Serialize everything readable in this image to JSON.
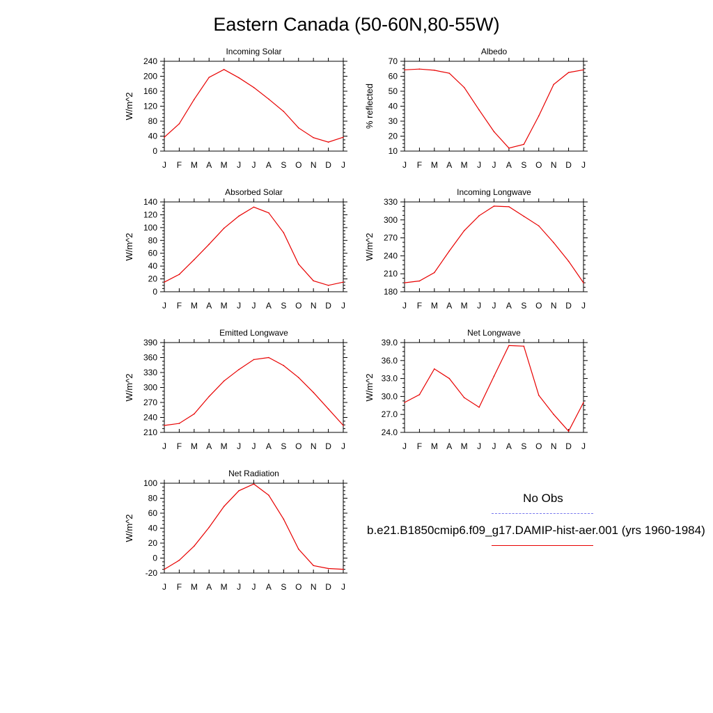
{
  "title": "Eastern Canada (50-60N,80-55W)",
  "legend": {
    "obs_label": "No Obs",
    "obs_color": "#7777ee",
    "model_label": "b.e21.B1850cmip6.f09_g17.DAMIP-hist-aer.001 (yrs 1960-1984)",
    "model_color": "#e80000"
  },
  "chart_data": [
    {
      "type": "line",
      "title": "Incoming Solar",
      "ylabel": "W/m^2",
      "categories": [
        "J",
        "F",
        "M",
        "A",
        "M",
        "J",
        "J",
        "A",
        "S",
        "O",
        "N",
        "D",
        "J"
      ],
      "ylim": [
        0,
        240
      ],
      "yticks": [
        "0",
        "40",
        "80",
        "120",
        "160",
        "200",
        "240"
      ],
      "values": [
        37,
        73,
        138,
        197,
        218,
        196,
        170,
        139,
        106,
        62,
        36,
        24,
        37
      ]
    },
    {
      "type": "line",
      "title": "Albedo",
      "ylabel": "% reflected",
      "categories": [
        "J",
        "F",
        "M",
        "A",
        "M",
        "J",
        "J",
        "A",
        "S",
        "O",
        "N",
        "D",
        "J"
      ],
      "ylim": [
        10,
        70
      ],
      "yticks": [
        "10",
        "20",
        "30",
        "40",
        "50",
        "60",
        "70"
      ],
      "values": [
        64.3,
        64.8,
        64.0,
        62.0,
        52.5,
        37.5,
        23.0,
        12.0,
        14.5,
        33.5,
        54.5,
        62.5,
        64.3
      ]
    },
    {
      "type": "line",
      "title": "Absorbed Solar",
      "ylabel": "W/m^2",
      "categories": [
        "J",
        "F",
        "M",
        "A",
        "M",
        "J",
        "J",
        "A",
        "S",
        "O",
        "N",
        "D",
        "J"
      ],
      "ylim": [
        0,
        140
      ],
      "yticks": [
        "0",
        "20",
        "40",
        "60",
        "80",
        "100",
        "120",
        "140"
      ],
      "values": [
        15,
        27,
        50,
        74,
        99,
        118,
        132,
        123,
        92,
        43,
        17,
        10,
        15
      ]
    },
    {
      "type": "line",
      "title": "Incoming Longwave",
      "ylabel": "W/m^2",
      "categories": [
        "J",
        "F",
        "M",
        "A",
        "M",
        "J",
        "J",
        "A",
        "S",
        "O",
        "N",
        "D",
        "J"
      ],
      "ylim": [
        180,
        330
      ],
      "yticks": [
        "180",
        "210",
        "240",
        "270",
        "300",
        "330"
      ],
      "values": [
        195,
        198,
        212,
        248,
        282,
        307,
        323,
        322,
        306,
        290,
        262,
        231,
        195
      ]
    },
    {
      "type": "line",
      "title": "Emitted Longwave",
      "ylabel": "W/m^2",
      "categories": [
        "J",
        "F",
        "M",
        "A",
        "M",
        "J",
        "J",
        "A",
        "S",
        "O",
        "N",
        "D",
        "J"
      ],
      "ylim": [
        210,
        390
      ],
      "yticks": [
        "210",
        "240",
        "270",
        "300",
        "330",
        "360",
        "390"
      ],
      "values": [
        224,
        228,
        247,
        282,
        313,
        336,
        356,
        360,
        344,
        320,
        290,
        257,
        224
      ]
    },
    {
      "type": "line",
      "title": "Net Longwave",
      "ylabel": "W/m^2",
      "categories": [
        "J",
        "F",
        "M",
        "A",
        "M",
        "J",
        "J",
        "A",
        "S",
        "O",
        "N",
        "D",
        "J"
      ],
      "ylim": [
        24,
        39
      ],
      "yticks": [
        "24.0",
        "27.0",
        "30.0",
        "33.0",
        "36.0",
        "39.0"
      ],
      "values": [
        29.0,
        30.3,
        34.6,
        33.0,
        29.8,
        28.2,
        33.4,
        38.5,
        38.4,
        30.2,
        27.0,
        24.2,
        29.0
      ]
    },
    {
      "type": "line",
      "title": "Net Radiation",
      "ylabel": "W/m^2",
      "categories": [
        "J",
        "F",
        "M",
        "A",
        "M",
        "J",
        "J",
        "A",
        "S",
        "O",
        "N",
        "D",
        "J"
      ],
      "ylim": [
        -20,
        100
      ],
      "yticks": [
        "-20",
        "0",
        "20",
        "40",
        "60",
        "80",
        "100"
      ],
      "values": [
        -15,
        -3,
        16,
        41,
        69,
        90,
        99,
        84,
        52,
        12,
        -10,
        -14,
        -15
      ]
    }
  ]
}
